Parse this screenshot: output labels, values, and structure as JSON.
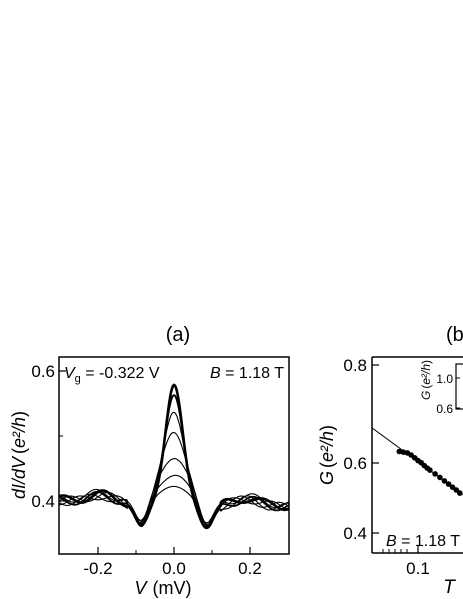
{
  "chart_data": [
    {
      "panel_label": "(a)",
      "type": "line",
      "xlabel": "V",
      "xunit": "(mV)",
      "ylabel": "dI/dV",
      "yunit": "e²/h",
      "xlim": [
        -0.3,
        0.3
      ],
      "ylim": [
        0.29,
        0.67
      ],
      "xticks": [
        -0.2,
        0.0,
        0.2
      ],
      "xtick_labels": [
        "-0.2",
        "0.0",
        "0.2"
      ],
      "yticks": [
        0.4,
        0.6
      ],
      "ytick_labels": [
        "0.4",
        "0.6"
      ],
      "annotations": {
        "vg_symbol": "V",
        "vg_sub": "g",
        "vg_value": " = -0.322 V",
        "b_symbol": "B",
        "b_value": " = 1.18 T"
      },
      "series": [
        {
          "peak": 0.622,
          "base": 0.395
        },
        {
          "peak": 0.6,
          "base": 0.393
        },
        {
          "peak": 0.568,
          "base": 0.392
        },
        {
          "peak": 0.532,
          "base": 0.393
        },
        {
          "peak": 0.482,
          "base": 0.394
        },
        {
          "peak": 0.447,
          "base": 0.396
        },
        {
          "peak": 0.424,
          "base": 0.398
        }
      ]
    },
    {
      "panel_label": "(b",
      "type": "scatter",
      "xlabel": "T",
      "ylabel": "G",
      "yunit": "e²/h",
      "xscale": "log",
      "ylim": [
        0.34,
        0.9
      ],
      "xticks": [
        0.1
      ],
      "xtick_labels": [
        "0.1"
      ],
      "yticks": [
        0.4,
        0.6,
        0.8
      ],
      "ytick_labels": [
        "0.4",
        "0.6",
        "0.8"
      ],
      "annotations": {
        "b_symbol": "B",
        "b_value": " = 1.18 T"
      },
      "fit_line": {
        "x": [
          0.045,
          0.21
        ],
        "y": [
          0.71,
          0.5
        ]
      },
      "points": {
        "x": [
          0.075,
          0.08,
          0.085,
          0.09,
          0.095,
          0.1,
          0.105,
          0.11,
          0.115,
          0.12,
          0.13,
          0.14,
          0.15,
          0.16,
          0.17,
          0.18,
          0.19,
          0.2
        ],
        "y": [
          0.63,
          0.628,
          0.626,
          0.62,
          0.612,
          0.604,
          0.598,
          0.59,
          0.583,
          0.577,
          0.566,
          0.556,
          0.546,
          0.537,
          0.528,
          0.52,
          0.511,
          0.503
        ]
      },
      "inset": {
        "ylabel": "G",
        "yunit": "e²/h",
        "yticks": [
          0.6,
          1.0
        ],
        "ytick_labels": [
          "0.6",
          "1.0"
        ]
      }
    }
  ]
}
